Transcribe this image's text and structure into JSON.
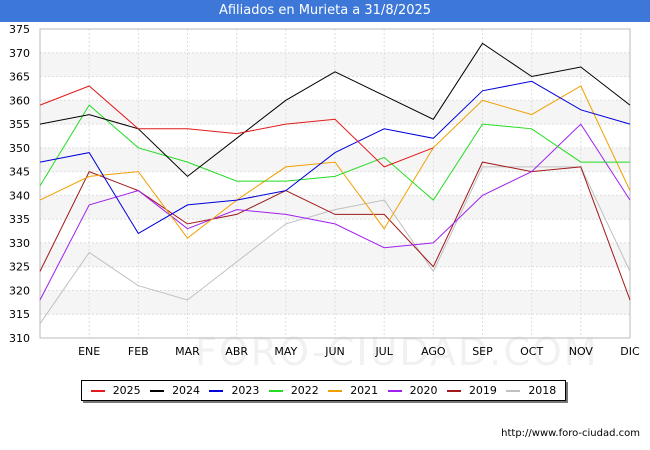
{
  "header": {
    "title": "Afiliados en Murieta a 31/8/2025"
  },
  "footer": {
    "url": "http://www.foro-ciudad.com"
  },
  "watermark": "FORO-CIUDAD.COM",
  "chart_data": {
    "type": "line",
    "title": "Afiliados en Murieta a 31/8/2025",
    "xlabel": "",
    "ylabel": "",
    "x": [
      "",
      "ENE",
      "FEB",
      "MAR",
      "ABR",
      "MAY",
      "JUN",
      "JUL",
      "AGO",
      "SEP",
      "OCT",
      "NOV",
      "DIC"
    ],
    "ylim": [
      310,
      375
    ],
    "yticks": [
      310,
      315,
      320,
      325,
      330,
      335,
      340,
      345,
      350,
      355,
      360,
      365,
      370,
      375
    ],
    "grid": true,
    "legend_position": "bottom",
    "series": [
      {
        "name": "2025",
        "color": "#e41a1c",
        "values": [
          359,
          363,
          354,
          354,
          353,
          355,
          356,
          346,
          350,
          null,
          null,
          null,
          null
        ]
      },
      {
        "name": "2024",
        "color": "#000000",
        "values": [
          355,
          357,
          354,
          344,
          352,
          360,
          366,
          361,
          356,
          372,
          365,
          367,
          359
        ]
      },
      {
        "name": "2023",
        "color": "#0000dd",
        "values": [
          347,
          349,
          332,
          338,
          339,
          341,
          349,
          354,
          352,
          362,
          364,
          358,
          355
        ]
      },
      {
        "name": "2022",
        "color": "#22dd22",
        "values": [
          342,
          359,
          350,
          347,
          343,
          343,
          344,
          348,
          339,
          355,
          354,
          347,
          347
        ]
      },
      {
        "name": "2021",
        "color": "#f0a000",
        "values": [
          339,
          344,
          345,
          331,
          339,
          346,
          347,
          333,
          350,
          360,
          357,
          363,
          341
        ]
      },
      {
        "name": "2020",
        "color": "#a020f0",
        "values": [
          318,
          338,
          341,
          333,
          337,
          336,
          334,
          329,
          330,
          340,
          345,
          355,
          339
        ]
      },
      {
        "name": "2019",
        "color": "#a01818",
        "values": [
          324,
          345,
          341,
          334,
          336,
          341,
          336,
          336,
          325,
          347,
          345,
          346,
          318
        ]
      },
      {
        "name": "2018",
        "color": "#c0c0c0",
        "values": [
          313,
          328,
          321,
          318,
          326,
          334,
          337,
          339,
          324,
          346,
          346,
          346,
          324
        ]
      }
    ]
  }
}
